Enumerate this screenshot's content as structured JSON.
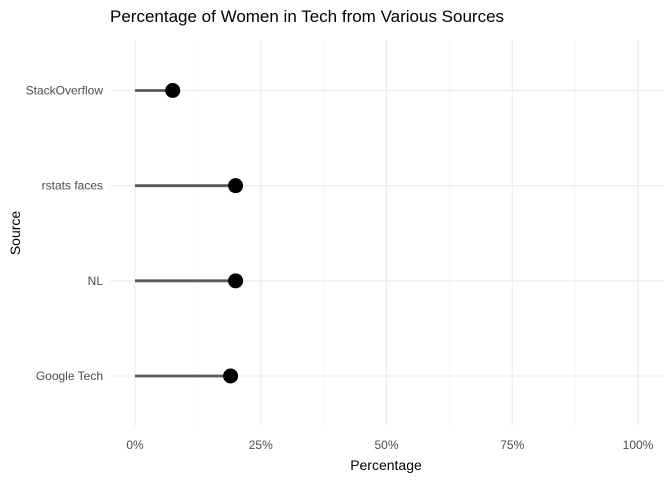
{
  "chart_data": {
    "type": "lollipop",
    "title": "Percentage of Women in Tech from Various Sources",
    "xlabel": "Percentage",
    "ylabel": "Source",
    "categories": [
      "Google Tech",
      "NL",
      "rstats faces",
      "StackOverflow"
    ],
    "values": [
      19,
      20,
      20,
      7.5
    ],
    "value_unit": "percent",
    "xlim": [
      0,
      100
    ],
    "x_ticks": [
      0,
      25,
      50,
      75,
      100
    ],
    "x_tick_labels": [
      "0%",
      "25%",
      "50%",
      "75%",
      "100%"
    ],
    "grid": true,
    "legend": "none",
    "colors": {
      "point": "#000000",
      "stem": "#595959",
      "grid": "#ebebeb",
      "background": "#ffffff"
    }
  }
}
